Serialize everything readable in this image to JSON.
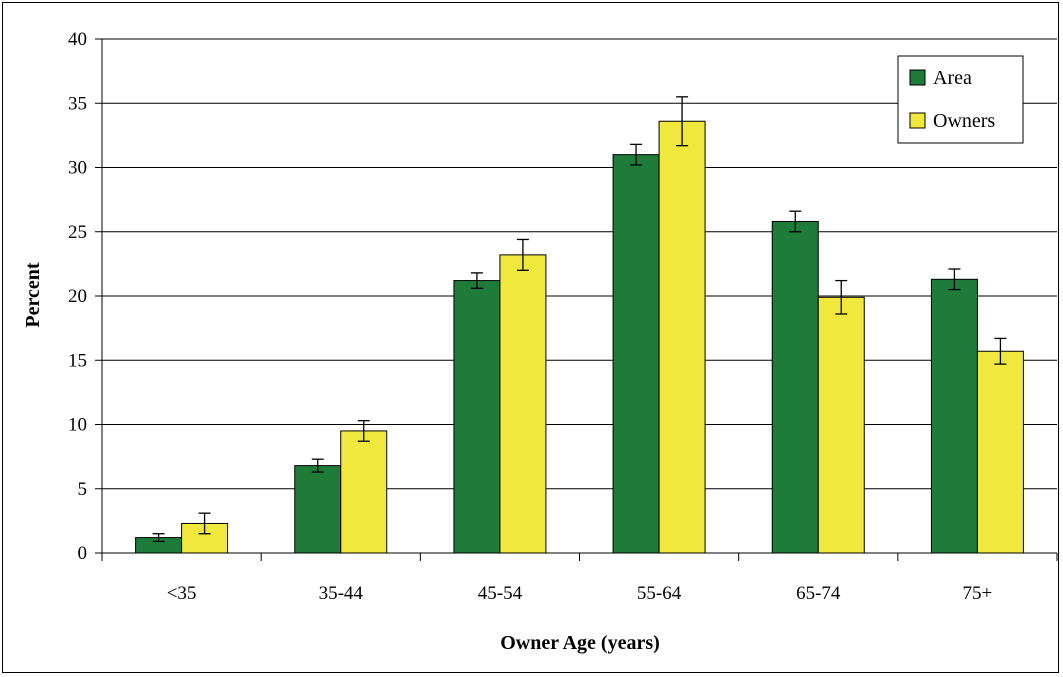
{
  "chart_data": {
    "type": "bar",
    "title": "",
    "xlabel": "Owner Age (years)",
    "ylabel": "Percent",
    "categories": [
      "<35",
      "35-44",
      "45-54",
      "55-64",
      "65-74",
      "75+"
    ],
    "ylim": [
      0,
      40
    ],
    "yticks": [
      0,
      5,
      10,
      15,
      20,
      25,
      30,
      35,
      40
    ],
    "grid": true,
    "legend_position": "top-right",
    "series": [
      {
        "name": "Area",
        "color": "#1e7b3a",
        "values": [
          1.2,
          6.8,
          21.2,
          31.0,
          25.8,
          21.3
        ],
        "error": [
          0.3,
          0.5,
          0.6,
          0.8,
          0.8,
          0.8
        ]
      },
      {
        "name": "Owners",
        "color": "#f0e83c",
        "values": [
          2.3,
          9.5,
          23.2,
          33.6,
          19.9,
          15.7
        ],
        "error": [
          0.8,
          0.8,
          1.2,
          1.9,
          1.3,
          1.0
        ]
      }
    ]
  }
}
